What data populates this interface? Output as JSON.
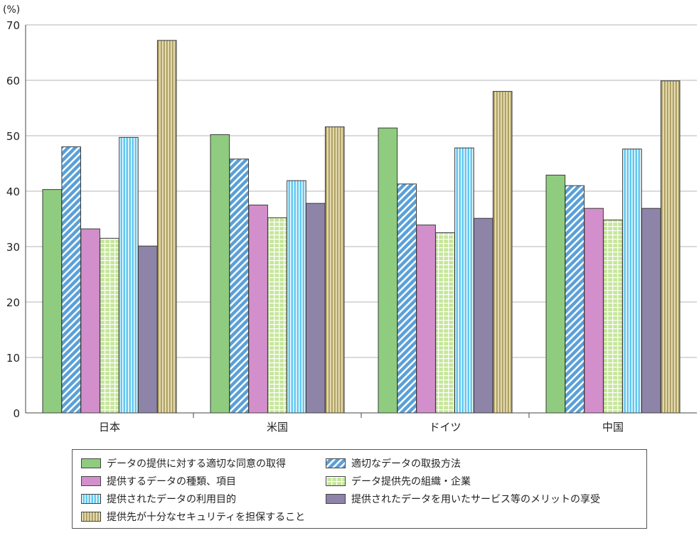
{
  "chart_data": {
    "type": "bar",
    "unit_label": "(%)",
    "ylim": [
      0,
      70
    ],
    "yticks": [
      0,
      10,
      20,
      30,
      40,
      50,
      60,
      70
    ],
    "categories": [
      "日本",
      "米国",
      "ドイツ",
      "中国"
    ],
    "series": [
      {
        "name": "データの提供に対する適切な同意の取得",
        "values": [
          40.3,
          50.2,
          51.4,
          42.9
        ],
        "color": "#8fcc7f",
        "pattern": "solid"
      },
      {
        "name": "適切なデータの取扱方法",
        "values": [
          48.0,
          45.8,
          41.3,
          41.0
        ],
        "color": "#5aa0d8",
        "pattern": "diagonal"
      },
      {
        "name": "提供するデータの種類、項目",
        "values": [
          33.2,
          37.5,
          33.9,
          36.9
        ],
        "color": "#d38fcb",
        "pattern": "solid"
      },
      {
        "name": "データ提供先の組織・企業",
        "values": [
          31.5,
          35.2,
          32.5,
          34.8
        ],
        "color": "#c6e69a",
        "pattern": "grid"
      },
      {
        "name": "提供されたデータの利用目的",
        "values": [
          49.7,
          41.9,
          47.8,
          47.6
        ],
        "color": "#62c8f0",
        "pattern": "vertical"
      },
      {
        "name": "提供されたデータを用いたサービス等のメリットの享受",
        "values": [
          30.1,
          37.8,
          35.1,
          36.9
        ],
        "color": "#8e84a8",
        "pattern": "solid"
      },
      {
        "name": "提供先が十分なセキュリティを担保すること",
        "values": [
          67.2,
          51.6,
          58.0,
          59.9
        ],
        "color": "#b0a268",
        "pattern": "vstripe"
      }
    ],
    "grid": true,
    "legend_placement": "bottom"
  }
}
